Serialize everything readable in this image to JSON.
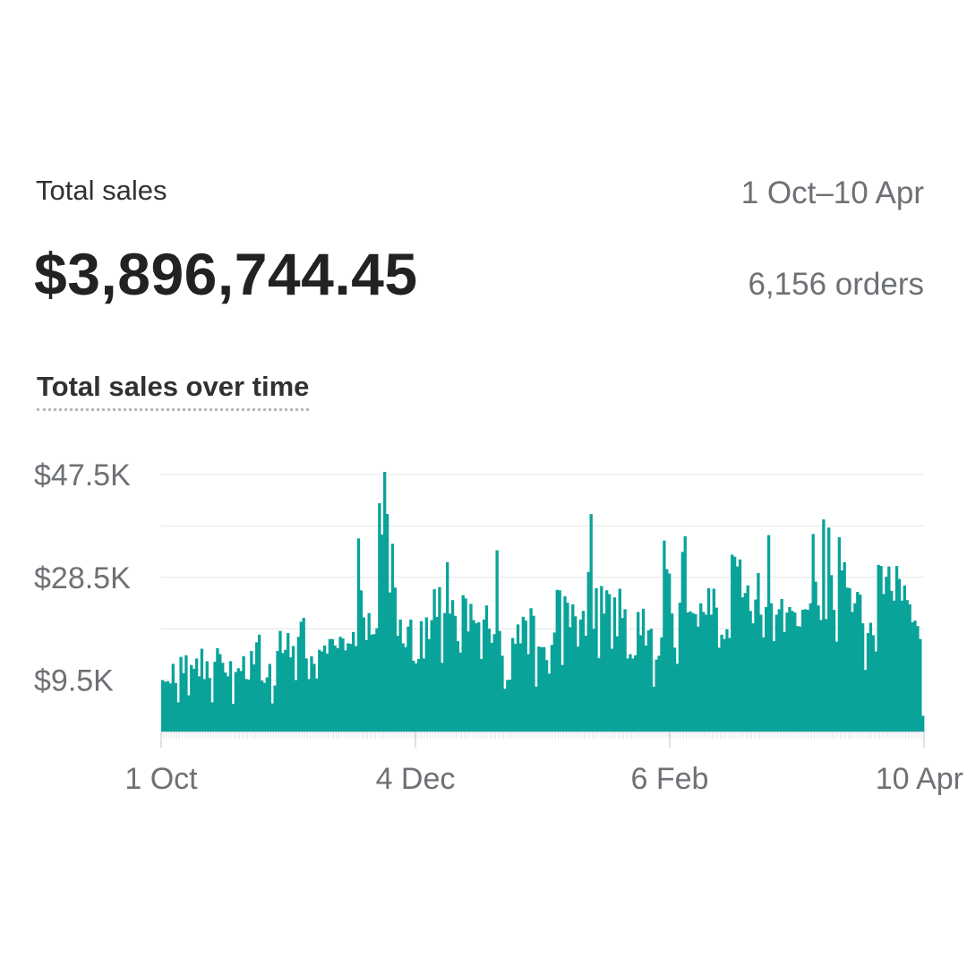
{
  "header": {
    "title": "Total sales",
    "date_range": "1 Oct–10 Apr",
    "total_value": "$3,896,744.45",
    "orders": "6,156 orders"
  },
  "chart_section": {
    "title": "Total sales over time"
  },
  "colors": {
    "bar": "#0aa39a",
    "grid": "#e4e5e7",
    "axis_text": "#6d7175"
  },
  "chart_data": {
    "type": "bar",
    "title": "Total sales over time",
    "xlabel": "",
    "ylabel": "",
    "x_start": "1 Oct",
    "x_end": "10 Apr",
    "x_tick_labels": [
      "1 Oct",
      "4 Dec",
      "6 Feb",
      "10 Apr"
    ],
    "y_tick_labels": [
      "$9.5K",
      "$28.5K",
      "$47.5K"
    ],
    "y_tick_values": [
      9500,
      28500,
      47500
    ],
    "ylim": [
      0,
      47500
    ],
    "grid": true,
    "values": [
      9500,
      9200,
      9300,
      8900,
      12500,
      9000,
      5400,
      13800,
      10800,
      14100,
      6700,
      12300,
      11600,
      13500,
      10200,
      15300,
      9700,
      13000,
      9900,
      5400,
      12900,
      15400,
      14300,
      12700,
      10900,
      10200,
      13000,
      5100,
      11000,
      11700,
      11200,
      13900,
      9700,
      9600,
      14900,
      12400,
      16500,
      17900,
      9400,
      9000,
      10000,
      12500,
      5200,
      8500,
      14900,
      18600,
      14500,
      15100,
      18200,
      13700,
      15800,
      9500,
      17500,
      20300,
      21000,
      13500,
      9700,
      13900,
      12500,
      9800,
      15100,
      14800,
      15900,
      14400,
      17100,
      17100,
      15900,
      15400,
      17500,
      17200,
      15000,
      16300,
      16200,
      18400,
      15800,
      35700,
      26100,
      21100,
      16900,
      21900,
      17900,
      18000,
      19100,
      42200,
      36400,
      48000,
      40200,
      25700,
      34700,
      26600,
      17700,
      20700,
      16300,
      15600,
      19400,
      20700,
      13100,
      12600,
      13400,
      20400,
      13500,
      21100,
      17100,
      20600,
      26300,
      21200,
      26700,
      12700,
      21900,
      31300,
      21800,
      24300,
      21400,
      16700,
      14600,
      25200,
      24600,
      18500,
      23600,
      20600,
      20000,
      20200,
      13400,
      20700,
      23300,
      19000,
      16400,
      18000,
      33500,
      18600,
      14000,
      7900,
      9500,
      9600,
      17300,
      16200,
      19800,
      16300,
      21200,
      20500,
      14300,
      22800,
      21400,
      8300,
      15700,
      15600,
      15600,
      13200,
      10700,
      16000,
      18300,
      26200,
      26100,
      12300,
      25000,
      23800,
      19300,
      23500,
      21300,
      15700,
      20700,
      22300,
      17700,
      29500,
      40200,
      19000,
      26500,
      13600,
      26900,
      21800,
      26100,
      25400,
      15300,
      24800,
      17600,
      26400,
      21000,
      22600,
      13500,
      14300,
      13500,
      14100,
      22100,
      17800,
      22700,
      15900,
      18700,
      19000,
      8300,
      13300,
      14000,
      17400,
      35300,
      30000,
      29200,
      21800,
      15500,
      12500,
      23800,
      33200,
      36100,
      22000,
      22200,
      21900,
      21700,
      19400,
      23700,
      22100,
      21600,
      26500,
      21600,
      26400,
      22900,
      15500,
      17900,
      17100,
      18900,
      17300,
      32700,
      32300,
      30500,
      31800,
      24800,
      25600,
      27000,
      22300,
      20000,
      24400,
      29300,
      21600,
      17400,
      23000,
      36300,
      23700,
      16700,
      21600,
      22600,
      24500,
      18400,
      22000,
      23000,
      22300,
      22000,
      19500,
      19400,
      22500,
      22600,
      22500,
      23700,
      36500,
      27700,
      23300,
      20600,
      39200,
      20800,
      37700,
      28900,
      22500,
      16600,
      35900,
      29800,
      31300,
      26600,
      26500,
      22100,
      23700,
      25800,
      25300,
      20000,
      11400,
      18200,
      20100,
      17800,
      14800,
      30800,
      30600,
      25400,
      28600,
      30500,
      26000,
      24200,
      30600,
      28200,
      24200,
      27000,
      24300,
      23500,
      20200,
      20500,
      19500,
      17100,
      2900
    ]
  }
}
